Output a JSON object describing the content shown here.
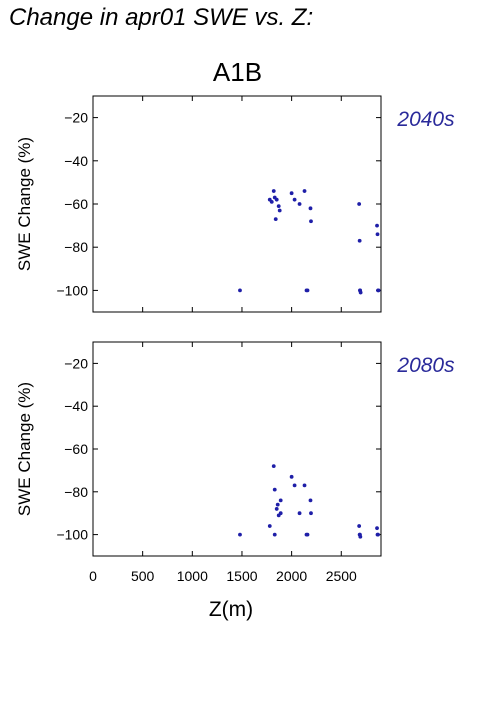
{
  "page_title": "Change in apr01 SWE vs. Z:",
  "scenario": "A1B",
  "colors": {
    "points": "#1f1fa8",
    "period_label": "#2a2a9a"
  },
  "chart_data": [
    {
      "type": "scatter",
      "title": "2040s",
      "xlabel": "",
      "ylabel": "SWE Change (%)",
      "xlim": [
        0,
        2900
      ],
      "ylim": [
        -110,
        -10
      ],
      "yticks": [
        -20,
        -40,
        -60,
        -80,
        -100
      ],
      "xticks": [
        0,
        500,
        1000,
        1500,
        2000,
        2500
      ],
      "points": [
        [
          1480,
          -100
        ],
        [
          1780,
          -58
        ],
        [
          1800,
          -59
        ],
        [
          1820,
          -54
        ],
        [
          1830,
          -57
        ],
        [
          1840,
          -67
        ],
        [
          1850,
          -58
        ],
        [
          1870,
          -61
        ],
        [
          1880,
          -63
        ],
        [
          2000,
          -55
        ],
        [
          2030,
          -58
        ],
        [
          2080,
          -60
        ],
        [
          2130,
          -54
        ],
        [
          2150,
          -100
        ],
        [
          2160,
          -100
        ],
        [
          2190,
          -62
        ],
        [
          2195,
          -68
        ],
        [
          2680,
          -60
        ],
        [
          2685,
          -77
        ],
        [
          2688,
          -100
        ],
        [
          2690,
          -100
        ],
        [
          2695,
          -101
        ],
        [
          2860,
          -70
        ],
        [
          2865,
          -74
        ],
        [
          2870,
          -100
        ],
        [
          2875,
          -100
        ]
      ]
    },
    {
      "type": "scatter",
      "title": "2080s",
      "xlabel": "Z(m)",
      "ylabel": "SWE Change (%)",
      "xlim": [
        0,
        2900
      ],
      "ylim": [
        -110,
        -10
      ],
      "yticks": [
        -20,
        -40,
        -60,
        -80,
        -100
      ],
      "xticks": [
        0,
        500,
        1000,
        1500,
        2000,
        2500
      ],
      "xticklabels": [
        "0",
        "500",
        "1000",
        "1500",
        "2000",
        "2500"
      ],
      "points": [
        [
          1480,
          -100
        ],
        [
          1780,
          -96
        ],
        [
          1820,
          -68
        ],
        [
          1830,
          -79
        ],
        [
          1830,
          -100
        ],
        [
          1850,
          -88
        ],
        [
          1860,
          -86
        ],
        [
          1870,
          -91
        ],
        [
          1890,
          -84
        ],
        [
          1890,
          -90
        ],
        [
          2000,
          -73
        ],
        [
          2030,
          -77
        ],
        [
          2080,
          -90
        ],
        [
          2130,
          -77
        ],
        [
          2150,
          -100
        ],
        [
          2160,
          -100
        ],
        [
          2190,
          -84
        ],
        [
          2195,
          -90
        ],
        [
          2680,
          -96
        ],
        [
          2685,
          -100
        ],
        [
          2688,
          -100
        ],
        [
          2692,
          -101
        ],
        [
          2860,
          -97
        ],
        [
          2865,
          -100
        ],
        [
          2870,
          -100
        ]
      ]
    }
  ]
}
